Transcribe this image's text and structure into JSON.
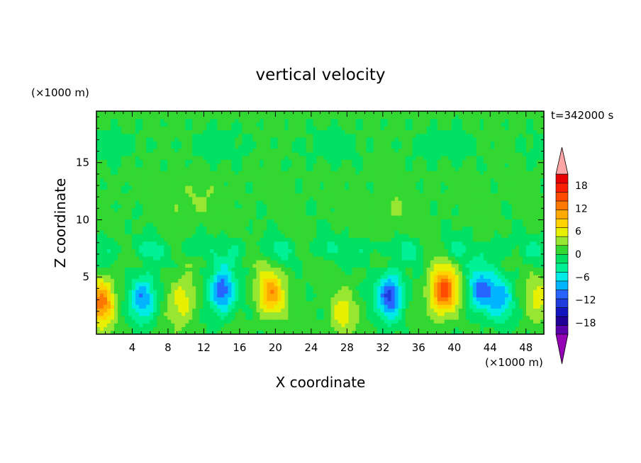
{
  "chart_data": {
    "type": "heatmap",
    "title": "vertical velocity",
    "xlabel": "X coordinate",
    "ylabel": "Z coordinate",
    "x_unit_label": "(×1000 m)",
    "y_unit_label": "(×1000 m)",
    "time_label": "t=342000 s",
    "xlim": [
      0,
      50
    ],
    "ylim": [
      0,
      19.5
    ],
    "x_ticks": [
      4,
      8,
      12,
      16,
      20,
      24,
      28,
      32,
      36,
      40,
      44,
      48
    ],
    "y_ticks": [
      5,
      10,
      15
    ],
    "x_tick_labels": [
      "4",
      "8",
      "12",
      "16",
      "20",
      "24",
      "28",
      "32",
      "36",
      "40",
      "44",
      "48"
    ],
    "y_tick_labels": [
      "5",
      "10",
      "15"
    ],
    "colorbar": {
      "min": -21,
      "max": 21,
      "step": 3,
      "tick_values": [
        -18,
        -12,
        -6,
        0,
        6,
        12,
        18
      ],
      "tick_labels": [
        "−18",
        "−12",
        "−6",
        "0",
        "6",
        "12",
        "18"
      ],
      "extend": "both",
      "colors": [
        "#9400b4",
        "#5a00aa",
        "#1e0096",
        "#1414be",
        "#1e3cdc",
        "#2864ff",
        "#00b4ff",
        "#00ebe6",
        "#00f096",
        "#00e164",
        "#32d732",
        "#96e632",
        "#e6f000",
        "#ffd200",
        "#ffaa00",
        "#ff7800",
        "#ff4b00",
        "#ff1e00",
        "#e60000",
        "#ffa5a5"
      ]
    },
    "features": [
      {
        "x": 0.6,
        "z": 2.8,
        "value": 12
      },
      {
        "x": 5.2,
        "z": 3.2,
        "value": -10
      },
      {
        "x": 9.6,
        "z": 3.0,
        "value": 6
      },
      {
        "x": 14.0,
        "z": 3.8,
        "value": -12
      },
      {
        "x": 19.5,
        "z": 3.6,
        "value": 10
      },
      {
        "x": 27.5,
        "z": 1.8,
        "value": 5
      },
      {
        "x": 32.8,
        "z": 3.4,
        "value": -13
      },
      {
        "x": 38.8,
        "z": 3.8,
        "value": 15
      },
      {
        "x": 42.9,
        "z": 3.9,
        "value": -10
      },
      {
        "x": 45.2,
        "z": 3.2,
        "value": -8
      },
      {
        "x": 49.5,
        "z": 3.4,
        "value": 5
      }
    ]
  }
}
